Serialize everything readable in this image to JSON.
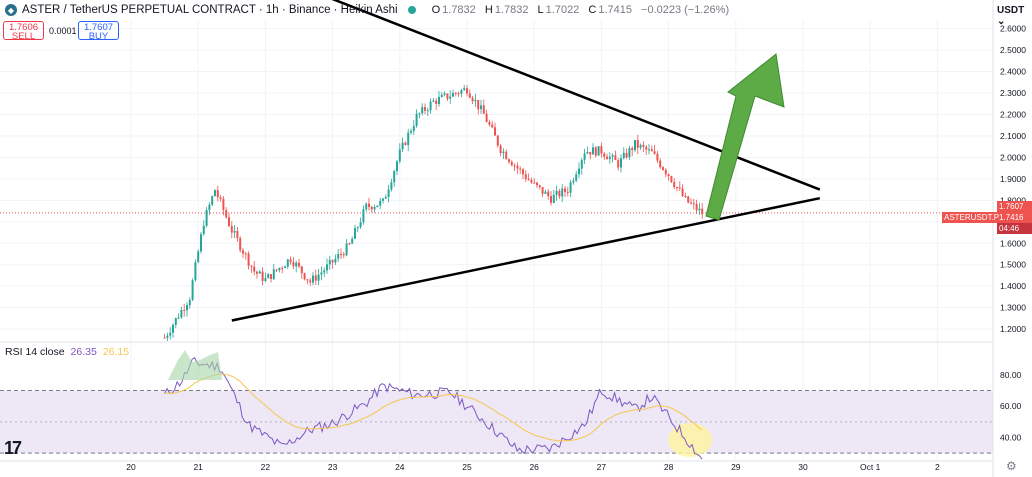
{
  "header": {
    "symbol": "ASTER / TetherUS PERPETUAL CONTRACT · 1h · Binance · Heikin Ashi",
    "open_label": "O",
    "open": "1.7832",
    "high_label": "H",
    "high": "1.7832",
    "low_label": "L",
    "low": "1.7022",
    "close_label": "C",
    "close": "1.7415",
    "change": "−0.0223 (−1.26%)"
  },
  "trade": {
    "sell_price": "1.7606",
    "sell_label": "SELL",
    "spread": "0.0001",
    "buy_price": "1.7607",
    "buy_label": "BUY"
  },
  "currency": "USDT",
  "rsi": {
    "label": "RSI 14 close",
    "value": "26.35",
    "ma_value": "26.15"
  },
  "price_tags": {
    "symbol_tag": "ASTERUSDT.P",
    "last": "1.7416",
    "ask": "1.7607",
    "countdown": "04:46"
  },
  "colors": {
    "up": "#26a69a",
    "down": "#ef5350",
    "rsi_line": "#7e57c2",
    "rsi_ma": "#f7c74f",
    "rsi_band": "#ede7f6",
    "arrow": "#5cab46",
    "highlight": "#fff59d"
  },
  "chart_data": {
    "type": "candlestick",
    "price_axis": {
      "ticks": [
        "2.6000",
        "2.5000",
        "2.4000",
        "2.3000",
        "2.2000",
        "2.1000",
        "2.0000",
        "1.9000",
        "1.8000",
        "1.7000",
        "1.6000",
        "1.5000",
        "1.4000",
        "1.3000",
        "1.2000"
      ],
      "range": [
        1.14,
        2.64
      ]
    },
    "time_axis": {
      "ticks": [
        "20",
        "21",
        "22",
        "23",
        "24",
        "25",
        "26",
        "27",
        "28",
        "29",
        "30",
        "Oct 1",
        "2"
      ]
    },
    "rsi_axis": {
      "ticks": [
        "80.00",
        "60.00",
        "40.00"
      ],
      "range": [
        25,
        92
      ],
      "bands": [
        30,
        70
      ]
    },
    "close_points": [
      {
        "t": "Sep 20 12:00",
        "v": 1.16
      },
      {
        "t": "Sep 20 21:00",
        "v": 1.35
      },
      {
        "t": "Sep 21 02:00",
        "v": 1.7
      },
      {
        "t": "Sep 21 06:00",
        "v": 1.85
      },
      {
        "t": "Sep 21 12:00",
        "v": 1.66
      },
      {
        "t": "Sep 21 20:00",
        "v": 1.47
      },
      {
        "t": "Sep 22 00:00",
        "v": 1.43
      },
      {
        "t": "Sep 22 09:00",
        "v": 1.53
      },
      {
        "t": "Sep 22 16:00",
        "v": 1.42
      },
      {
        "t": "Sep 22 23:00",
        "v": 1.5
      },
      {
        "t": "Sep 23 06:00",
        "v": 1.59
      },
      {
        "t": "Sep 23 12:00",
        "v": 1.77
      },
      {
        "t": "Sep 23 18:00",
        "v": 1.79
      },
      {
        "t": "Sep 24 00:00",
        "v": 2.02
      },
      {
        "t": "Sep 24 06:00",
        "v": 2.19
      },
      {
        "t": "Sep 24 12:00",
        "v": 2.26
      },
      {
        "t": "Sep 24 18:00",
        "v": 2.29
      },
      {
        "t": "Sep 25 00:00",
        "v": 2.32
      },
      {
        "t": "Sep 25 06:00",
        "v": 2.2
      },
      {
        "t": "Sep 25 12:00",
        "v": 2.04
      },
      {
        "t": "Sep 25 18:00",
        "v": 1.95
      },
      {
        "t": "Sep 26 00:00",
        "v": 1.87
      },
      {
        "t": "Sep 26 06:00",
        "v": 1.81
      },
      {
        "t": "Sep 26 12:00",
        "v": 1.85
      },
      {
        "t": "Sep 26 18:00",
        "v": 2.03
      },
      {
        "t": "Sep 27 00:00",
        "v": 2.03
      },
      {
        "t": "Sep 27 06:00",
        "v": 1.97
      },
      {
        "t": "Sep 27 12:00",
        "v": 2.06
      },
      {
        "t": "Sep 27 18:00",
        "v": 2.02
      },
      {
        "t": "Sep 28 00:00",
        "v": 1.92
      },
      {
        "t": "Sep 28 06:00",
        "v": 1.8
      },
      {
        "t": "Sep 28 12:00",
        "v": 1.74
      }
    ],
    "rsi_points": [
      {
        "t": "Sep 20 12:00",
        "v": 67
      },
      {
        "t": "Sep 20 18:00",
        "v": 76
      },
      {
        "t": "Sep 20 22:00",
        "v": 88
      },
      {
        "t": "Sep 21 08:00",
        "v": 85
      },
      {
        "t": "Sep 21 18:00",
        "v": 48
      },
      {
        "t": "Sep 22 06:00",
        "v": 34
      },
      {
        "t": "Sep 22 16:00",
        "v": 45
      },
      {
        "t": "Sep 23 00:00",
        "v": 49
      },
      {
        "t": "Sep 23 12:00",
        "v": 62
      },
      {
        "t": "Sep 23 18:00",
        "v": 73
      },
      {
        "t": "Sep 24 06:00",
        "v": 67
      },
      {
        "t": "Sep 24 18:00",
        "v": 69
      },
      {
        "t": "Sep 25 06:00",
        "v": 51
      },
      {
        "t": "Sep 25 18:00",
        "v": 32
      },
      {
        "t": "Sep 26 06:00",
        "v": 33
      },
      {
        "t": "Sep 26 18:00",
        "v": 48
      },
      {
        "t": "Sep 27 00:00",
        "v": 70
      },
      {
        "t": "Sep 27 12:00",
        "v": 58
      },
      {
        "t": "Sep 27 18:00",
        "v": 66
      },
      {
        "t": "Sep 28 06:00",
        "v": 40
      },
      {
        "t": "Sep 28 12:00",
        "v": 26
      }
    ],
    "trendlines": [
      {
        "name": "upper",
        "from": {
          "t": "Sep 22 00:00",
          "v": 2.86
        },
        "to": {
          "t": "Sep 30 06:00",
          "v": 1.85
        }
      },
      {
        "name": "lower",
        "from": {
          "t": "Sep 21 12:00",
          "v": 1.24
        },
        "to": {
          "t": "Sep 30 06:00",
          "v": 1.81
        }
      }
    ]
  }
}
